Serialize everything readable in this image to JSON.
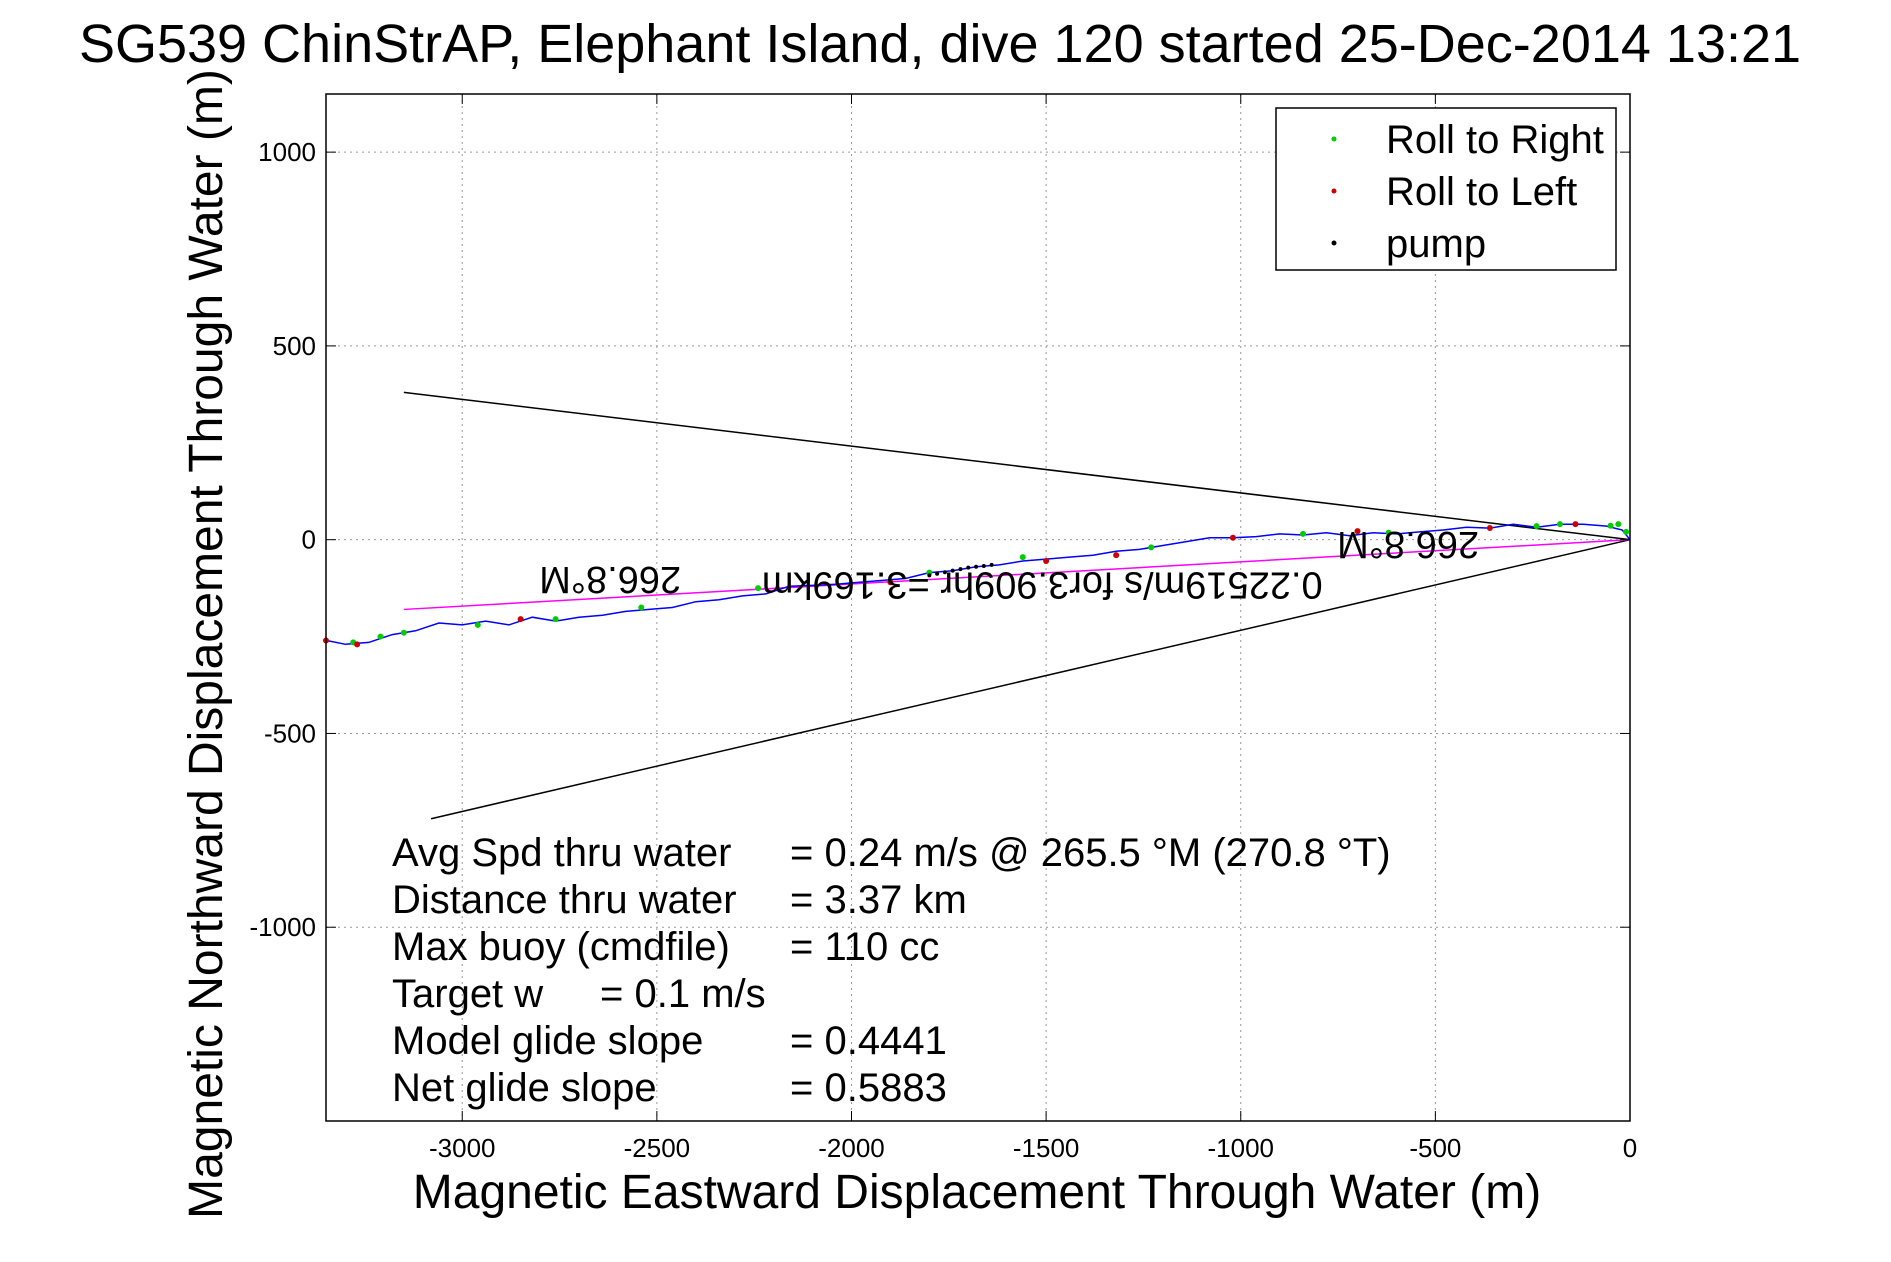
{
  "chart_data": {
    "type": "line",
    "title": "SG539 ChinStrAP, Elephant Island, dive 120 started 25-Dec-2014 13:21",
    "xlabel": "Magnetic Eastward Displacement Through Water (m)",
    "ylabel": "Magnetic Northward Displacement Through Water (m)",
    "xlim": [
      -3350,
      0
    ],
    "ylim": [
      -1500,
      1150
    ],
    "xticks": [
      -3000,
      -2500,
      -2000,
      -1500,
      -1000,
      -500,
      0
    ],
    "xtick_labels": [
      "-3000",
      "-2500",
      "-2000",
      "-1500",
      "-1000",
      "-500",
      "0"
    ],
    "yticks": [
      1000,
      500,
      0,
      -500,
      -1000
    ],
    "ytick_labels": [
      "1000",
      "500",
      "0",
      "-500",
      "-1000"
    ],
    "grid": true,
    "legend_position": "top-right",
    "legend": [
      {
        "label": "Roll to Right",
        "color": "#00cc00"
      },
      {
        "label": "Roll to Left",
        "color": "#cc0000"
      },
      {
        "label": "pump",
        "color": "#000000"
      }
    ],
    "series": [
      {
        "name": "track",
        "color": "#0000ff",
        "x": [
          0,
          -20,
          -60,
          -120,
          -180,
          -240,
          -300,
          -360,
          -420,
          -480,
          -540,
          -600,
          -660,
          -720,
          -780,
          -840,
          -900,
          -960,
          -1020,
          -1080,
          -1140,
          -1200,
          -1260,
          -1320,
          -1380,
          -1440,
          -1500,
          -1560,
          -1620,
          -1680,
          -1740,
          -1800,
          -1860,
          -1920,
          -1980,
          -2040,
          -2100,
          -2160,
          -2220,
          -2280,
          -2340,
          -2400,
          -2460,
          -2520,
          -2580,
          -2640,
          -2700,
          -2760,
          -2820,
          -2880,
          -2940,
          -3000,
          -3060,
          -3120,
          -3180,
          -3240,
          -3300,
          -3350
        ],
        "y": [
          0,
          25,
          35,
          40,
          40,
          32,
          40,
          30,
          32,
          25,
          20,
          15,
          18,
          10,
          18,
          12,
          15,
          8,
          5,
          5,
          -5,
          -15,
          -25,
          -30,
          -40,
          -45,
          -50,
          -55,
          -65,
          -70,
          -80,
          -85,
          -100,
          -105,
          -110,
          -115,
          -118,
          -120,
          -140,
          -145,
          -155,
          -160,
          -175,
          -180,
          -185,
          -195,
          -200,
          -210,
          -200,
          -220,
          -210,
          -220,
          -215,
          -235,
          -245,
          -265,
          -270,
          -260
        ]
      },
      {
        "name": "Roll to Right",
        "color": "#00cc00",
        "x": [
          -10,
          -30,
          -50,
          -180,
          -240,
          -620,
          -840,
          -1230,
          -1560,
          -1800,
          -2240,
          -2540,
          -2760,
          -2960,
          -3150,
          -3210,
          -3280
        ],
        "y": [
          20,
          40,
          36,
          40,
          35,
          18,
          15,
          -20,
          -45,
          -85,
          -125,
          -175,
          -205,
          -220,
          -240,
          -250,
          -265
        ]
      },
      {
        "name": "Roll to Left",
        "color": "#cc0000",
        "x": [
          -140,
          -360,
          -700,
          -1020,
          -1320,
          -1500,
          -1900,
          -2850,
          -3270,
          -3350
        ],
        "y": [
          40,
          30,
          22,
          5,
          -40,
          -55,
          -110,
          -205,
          -270,
          -260
        ]
      },
      {
        "name": "pump",
        "color": "#000000",
        "x": [
          -1640,
          -1660,
          -1680,
          -1700,
          -1720,
          -1740,
          -1760,
          -1780,
          -1800
        ],
        "y": [
          -65,
          -68,
          -70,
          -72,
          -76,
          -80,
          -84,
          -88,
          -92
        ]
      }
    ],
    "reference_lines": [
      {
        "color": "#000000",
        "x": [
          0,
          -3150
        ],
        "y": [
          0,
          380
        ]
      },
      {
        "color": "#000000",
        "x": [
          0,
          -3080
        ],
        "y": [
          0,
          -720
        ]
      },
      {
        "color": "#ff00ff",
        "x": [
          0,
          -3150
        ],
        "y": [
          0,
          -180
        ]
      }
    ],
    "annotations": [
      {
        "text": "266.8°M",
        "x": -2620,
        "y": -70
      },
      {
        "text": "266.8°M",
        "x": -570,
        "y": 20
      },
      {
        "text": "0.22519m/s for3.909hr =3.169km",
        "x": -1510,
        "y": -85
      }
    ],
    "stats": [
      {
        "label": "Avg Spd thru water",
        "value": "=  0.24 m/s @ 265.5 °M (270.8 °T)"
      },
      {
        "label": "Distance thru water",
        "value": "=  3.37 km"
      },
      {
        "label": "Max buoy (cmdfile)",
        "value": "= 110 cc"
      },
      {
        "label": "Target w",
        "value": "= 0.1 m/s"
      },
      {
        "label": "Model glide slope",
        "value": "= 0.4441"
      },
      {
        "label": "Net glide slope",
        "value": "= 0.5883"
      }
    ]
  }
}
